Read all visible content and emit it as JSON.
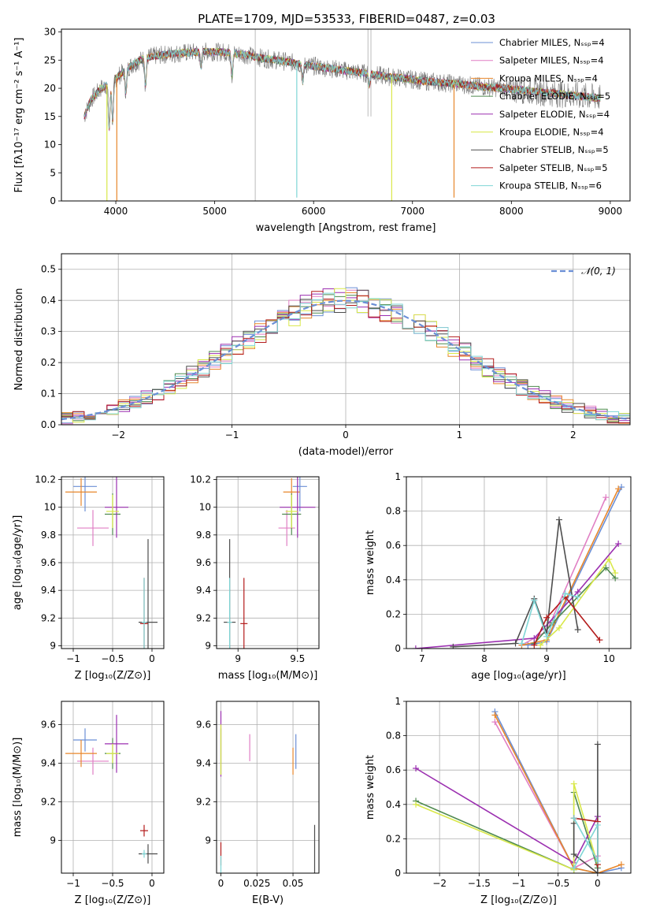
{
  "title": "PLATE=1709, MJD=53533, FIBERID=0487, z=0.03",
  "colors": {
    "chabrier_miles": "#6b8fd6",
    "salpeter_miles": "#e07fc4",
    "kroupa_miles": "#e8872b",
    "chabrier_elodie": "#4f8a4f",
    "salpeter_elodie": "#9b2fb0",
    "kroupa_elodie": "#d9e84a",
    "chabrier_stelib": "#4d4d4d",
    "salpeter_stelib": "#b31b1b",
    "kroupa_stelib": "#7fd6d6",
    "normal_curve": "#6b8fd6",
    "grid": "#b0b0b0"
  },
  "chart_data": [
    {
      "id": "spectrum",
      "type": "line",
      "title": "PLATE=1709, MJD=53533, FIBERID=0487, z=0.03",
      "xlabel": "wavelength [Angstrom, rest frame]",
      "ylabel": "Flux [fλ10⁻¹⁷ erg cm⁻² s⁻¹ A⁻¹]",
      "xlim": [
        3450,
        9200
      ],
      "ylim": [
        0,
        30.5
      ],
      "xticks": [
        4000,
        5000,
        6000,
        7000,
        8000,
        9000
      ],
      "yticks": [
        0,
        5,
        10,
        15,
        20,
        25,
        30
      ],
      "grid": false,
      "legend_position": "top-right",
      "legend": [
        "Chabrier MILES, Nₛₛₚ=4",
        "Salpeter MILES, Nₛₛₚ=4",
        "Kroupa MILES, Nₛₛₚ=4",
        "Chabrier ELODIE, Nₛₛₚ=5",
        "Salpeter ELODIE, Nₛₛₚ=4",
        "Kroupa ELODIE, Nₛₛₚ=4",
        "Chabrier STELIB, Nₛₛₚ=5",
        "Salpeter STELIB, Nₛₛₚ=5",
        "Kroupa STELIB, Nₛₛₚ=6"
      ],
      "continuum": {
        "x": [
          3680,
          3750,
          3850,
          3950,
          4050,
          4150,
          4300,
          4500,
          4700,
          4900,
          5100,
          5300,
          5500,
          5700,
          5900,
          6100,
          6300,
          6500,
          6700,
          6900,
          7100,
          7300,
          7500,
          7700,
          7900,
          8100,
          8300,
          8500,
          8700,
          8900
        ],
        "y": [
          15,
          18,
          20,
          21,
          22.5,
          24,
          25.5,
          26,
          26.3,
          26.5,
          26.4,
          26,
          25.3,
          24.8,
          24.2,
          23.7,
          23.2,
          22.7,
          22.2,
          21.8,
          21.3,
          21,
          20.7,
          20.3,
          20,
          19.7,
          19.3,
          19,
          18.6,
          18.3
        ]
      },
      "absorption_lines": [
        {
          "x": 3933,
          "depth": 8
        },
        {
          "x": 3968,
          "depth": 7
        },
        {
          "x": 4102,
          "depth": 4
        },
        {
          "x": 4300,
          "depth": 5
        },
        {
          "x": 4861,
          "depth": 3
        },
        {
          "x": 5175,
          "depth": 4
        },
        {
          "x": 5890,
          "depth": 3
        },
        {
          "x": 6563,
          "depth": 2
        }
      ],
      "artifacts": [
        {
          "x": 3910,
          "ymin": 0
        },
        {
          "x": 4010,
          "ymin": 0
        },
        {
          "x": 5830,
          "ymin": 0.6
        },
        {
          "x": 6790,
          "ymin": 0
        },
        {
          "x": 7420,
          "ymin": 0.6
        }
      ],
      "sky_spikes": [
        {
          "x": 5410,
          "ymin": 0
        },
        {
          "x": 6550,
          "ymin": 15
        },
        {
          "x": 6580,
          "ymin": 15
        }
      ]
    },
    {
      "id": "residuals",
      "type": "line",
      "xlabel": "(data-model)/error",
      "ylabel": "Normed distribution",
      "xlim": [
        -2.5,
        2.5
      ],
      "ylim": [
        0,
        0.55
      ],
      "xticks": [
        -2,
        -1,
        0,
        1,
        2
      ],
      "yticks": [
        0.0,
        0.1,
        0.2,
        0.3,
        0.4,
        0.5
      ],
      "grid": true,
      "legend_position": "top-right",
      "legend": [
        "𝒩(0, 1)"
      ],
      "bin_width": 0.1
    },
    {
      "id": "age-vs-z",
      "type": "scatter",
      "xlabel": "Z [log₁₀(Z/Z⊙)]",
      "ylabel": "age  [log₁₀(age/yr)]",
      "xlim": [
        -1.15,
        0.15
      ],
      "ylim": [
        8.98,
        10.22
      ],
      "xticks": [
        -1.0,
        -0.5,
        0.0
      ],
      "yticks": [
        9.0,
        9.2,
        9.4,
        9.6,
        9.8,
        10.0,
        10.2
      ],
      "grid": true,
      "points": [
        {
          "x": -0.85,
          "y": 10.15,
          "xerr": 0.15,
          "yerr": 0.18,
          "series": "chabrier_miles"
        },
        {
          "x": -0.75,
          "y": 9.85,
          "xerr": 0.2,
          "yerr": 0.13,
          "series": "salpeter_miles"
        },
        {
          "x": -0.9,
          "y": 10.11,
          "xerr": 0.2,
          "yerr": 0.1,
          "series": "kroupa_miles"
        },
        {
          "x": -0.5,
          "y": 9.95,
          "xerr": 0.1,
          "yerr": 0.15,
          "series": "chabrier_elodie"
        },
        {
          "x": -0.45,
          "y": 10.0,
          "xerr": 0.15,
          "yerr": 0.22,
          "series": "salpeter_elodie"
        },
        {
          "x": -0.5,
          "y": 9.97,
          "xerr": 0.08,
          "yerr": 0.12,
          "series": "kroupa_elodie"
        },
        {
          "x": -0.05,
          "y": 9.17,
          "xerr": 0.12,
          "yerr": 0.6,
          "series": "chabrier_stelib"
        },
        {
          "x": -0.1,
          "y": 9.16,
          "xerr": 0.05,
          "yerr": 0.33,
          "series": "salpeter_stelib"
        },
        {
          "x": -0.1,
          "y": 9.17,
          "xerr": 0.03,
          "yerr": 0.32,
          "series": "kroupa_stelib"
        }
      ]
    },
    {
      "id": "age-vs-mass",
      "type": "scatter",
      "xlabel": "mass [log₁₀(M/M⊙)]",
      "xlim": [
        8.82,
        9.68
      ],
      "ylim": [
        8.98,
        10.22
      ],
      "xticks": [
        9.0,
        9.5
      ],
      "yticks": [
        9.0,
        9.2,
        9.4,
        9.6,
        9.8,
        10.0,
        10.2
      ],
      "grid": true,
      "points": [
        {
          "x": 9.52,
          "y": 10.15,
          "xerr": 0.06,
          "yerr": 0.18,
          "series": "chabrier_miles"
        },
        {
          "x": 9.41,
          "y": 9.85,
          "xerr": 0.07,
          "yerr": 0.13,
          "series": "salpeter_miles"
        },
        {
          "x": 9.45,
          "y": 10.11,
          "xerr": 0.07,
          "yerr": 0.1,
          "series": "kroupa_miles"
        },
        {
          "x": 9.45,
          "y": 9.95,
          "xerr": 0.08,
          "yerr": 0.15,
          "series": "chabrier_elodie"
        },
        {
          "x": 9.5,
          "y": 10.0,
          "xerr": 0.15,
          "yerr": 0.22,
          "series": "salpeter_elodie"
        },
        {
          "x": 9.45,
          "y": 9.97,
          "xerr": 0.05,
          "yerr": 0.12,
          "series": "kroupa_elodie"
        },
        {
          "x": 8.93,
          "y": 9.17,
          "xerr": 0.05,
          "yerr": 0.6,
          "series": "chabrier_stelib"
        },
        {
          "x": 9.05,
          "y": 9.16,
          "xerr": 0.03,
          "yerr": 0.33,
          "series": "salpeter_stelib"
        },
        {
          "x": 8.93,
          "y": 9.17,
          "xerr": 0.02,
          "yerr": 0.32,
          "series": "kroupa_stelib"
        }
      ]
    },
    {
      "id": "mass-weight-vs-age",
      "type": "line",
      "xlabel": "age  [log₁₀(age/yr)]",
      "ylabel": "mass weight",
      "xlim": [
        6.75,
        10.35
      ],
      "ylim": [
        0,
        1.0
      ],
      "xticks": [
        7,
        8,
        9,
        10
      ],
      "yticks": [
        0.0,
        0.2,
        0.4,
        0.6,
        0.8,
        1.0
      ],
      "grid": true,
      "series": [
        {
          "key": "chabrier_miles",
          "x": [
            8.7,
            9.0,
            10.2
          ],
          "y": [
            0.02,
            0.04,
            0.94
          ]
        },
        {
          "key": "salpeter_miles",
          "x": [
            8.6,
            9.0,
            9.95
          ],
          "y": [
            0.02,
            0.1,
            0.88
          ]
        },
        {
          "key": "kroupa_miles",
          "x": [
            8.6,
            9.0,
            10.15
          ],
          "y": [
            0.02,
            0.05,
            0.93
          ]
        },
        {
          "key": "chabrier_elodie",
          "x": [
            8.8,
            9.1,
            9.95,
            10.1
          ],
          "y": [
            0.03,
            0.15,
            0.47,
            0.41
          ]
        },
        {
          "key": "salpeter_elodie",
          "x": [
            6.9,
            8.8,
            9.5,
            10.15
          ],
          "y": [
            0.0,
            0.06,
            0.33,
            0.61
          ]
        },
        {
          "key": "kroupa_elodie",
          "x": [
            8.9,
            9.2,
            10.0,
            10.1
          ],
          "y": [
            0.02,
            0.12,
            0.52,
            0.44
          ]
        },
        {
          "key": "chabrier_stelib",
          "x": [
            7.5,
            8.5,
            8.8,
            9.0,
            9.2,
            9.5
          ],
          "y": [
            0.01,
            0.03,
            0.29,
            0.09,
            0.75,
            0.11
          ]
        },
        {
          "key": "salpeter_stelib",
          "x": [
            8.8,
            9.0,
            9.3,
            9.85
          ],
          "y": [
            0.02,
            0.18,
            0.3,
            0.05
          ]
        },
        {
          "key": "kroupa_stelib",
          "x": [
            8.6,
            8.8,
            9.0,
            9.3,
            9.5
          ],
          "y": [
            0.03,
            0.28,
            0.07,
            0.32,
            0.3
          ]
        }
      ]
    },
    {
      "id": "mass-vs-z",
      "type": "scatter",
      "xlabel": "Z [log₁₀(Z/Z⊙)]",
      "ylabel": "mass [log₁₀(M/M⊙)]",
      "xlim": [
        -1.15,
        0.15
      ],
      "ylim": [
        8.83,
        9.72
      ],
      "xticks": [
        -1.0,
        -0.5,
        0.0
      ],
      "yticks": [
        9.0,
        9.2,
        9.4,
        9.6
      ],
      "grid": true,
      "points": [
        {
          "x": -0.85,
          "y": 9.52,
          "xerr": 0.15,
          "yerr": 0.06,
          "series": "chabrier_miles"
        },
        {
          "x": -0.75,
          "y": 9.41,
          "xerr": 0.2,
          "yerr": 0.07,
          "series": "salpeter_miles"
        },
        {
          "x": -0.9,
          "y": 9.45,
          "xerr": 0.2,
          "yerr": 0.07,
          "series": "kroupa_miles"
        },
        {
          "x": -0.5,
          "y": 9.45,
          "xerr": 0.1,
          "yerr": 0.08,
          "series": "chabrier_elodie"
        },
        {
          "x": -0.45,
          "y": 9.5,
          "xerr": 0.15,
          "yerr": 0.15,
          "series": "salpeter_elodie"
        },
        {
          "x": -0.5,
          "y": 9.45,
          "xerr": 0.08,
          "yerr": 0.05,
          "series": "kroupa_elodie"
        },
        {
          "x": -0.05,
          "y": 8.93,
          "xerr": 0.12,
          "yerr": 0.05,
          "series": "chabrier_stelib"
        },
        {
          "x": -0.1,
          "y": 9.05,
          "xerr": 0.05,
          "yerr": 0.03,
          "series": "salpeter_stelib"
        },
        {
          "x": -0.1,
          "y": 8.93,
          "xerr": 0.03,
          "yerr": 0.02,
          "series": "kroupa_stelib"
        }
      ]
    },
    {
      "id": "mass-vs-ebv",
      "type": "scatter",
      "xlabel": "E(B-V)",
      "xlim": [
        -0.003,
        0.068
      ],
      "ylim": [
        8.83,
        9.72
      ],
      "xticks": [
        0.0,
        0.025,
        0.05
      ],
      "yticks": [
        9.0,
        9.2,
        9.4,
        9.6
      ],
      "grid": true,
      "points": [
        {
          "x": 0.052,
          "y": 9.46,
          "yerr": 0.09,
          "series": "chabrier_miles"
        },
        {
          "x": 0.02,
          "y": 9.48,
          "yerr": 0.07,
          "series": "salpeter_miles"
        },
        {
          "x": 0.05,
          "y": 9.41,
          "yerr": 0.07,
          "series": "kroupa_miles"
        },
        {
          "x": 0.0,
          "y": 9.46,
          "yerr": 0.12,
          "series": "chabrier_elodie"
        },
        {
          "x": 0.0,
          "y": 9.5,
          "yerr": 0.17,
          "series": "salpeter_elodie"
        },
        {
          "x": 0.0,
          "y": 9.47,
          "yerr": 0.13,
          "series": "kroupa_elodie"
        },
        {
          "x": 0.065,
          "y": 8.93,
          "yerr": 0.15,
          "series": "chabrier_stelib"
        },
        {
          "x": 0.0,
          "y": 8.93,
          "yerr": 0.06,
          "series": "salpeter_stelib"
        },
        {
          "x": 0.0,
          "y": 8.87,
          "yerr": 0.05,
          "series": "kroupa_stelib"
        }
      ]
    },
    {
      "id": "mass-weight-vs-z",
      "type": "line",
      "xlabel": "Z [log₁₀(Z/Z⊙)]",
      "ylabel": "mass weight",
      "xlim": [
        -2.42,
        0.42
      ],
      "ylim": [
        0,
        1.0
      ],
      "xticks": [
        -2.0,
        -1.5,
        -1.0,
        -0.5,
        0.0
      ],
      "yticks": [
        0.0,
        0.2,
        0.4,
        0.6,
        0.8,
        1.0
      ],
      "grid": true,
      "series": [
        {
          "key": "chabrier_miles",
          "x": [
            -1.3,
            -0.3,
            0.0,
            0.3
          ],
          "y": [
            0.94,
            0.03,
            0.0,
            0.03
          ]
        },
        {
          "key": "salpeter_miles",
          "x": [
            -1.3,
            -0.3,
            0.0
          ],
          "y": [
            0.88,
            0.03,
            0.1
          ]
        },
        {
          "key": "kroupa_miles",
          "x": [
            -1.3,
            -0.3,
            0.0,
            0.3
          ],
          "y": [
            0.92,
            0.03,
            0.0,
            0.05
          ]
        },
        {
          "key": "chabrier_elodie",
          "x": [
            -2.3,
            -0.3,
            -0.3,
            0.0
          ],
          "y": [
            0.42,
            0.02,
            0.47,
            0.03
          ]
        },
        {
          "key": "salpeter_elodie",
          "x": [
            -2.3,
            -0.3,
            0.0
          ],
          "y": [
            0.61,
            0.06,
            0.33
          ]
        },
        {
          "key": "kroupa_elodie",
          "x": [
            -2.3,
            -0.3,
            -0.3,
            0.0
          ],
          "y": [
            0.4,
            0.02,
            0.52,
            0.05
          ]
        },
        {
          "key": "chabrier_stelib",
          "x": [
            -0.3,
            -0.3,
            0.0,
            0.0
          ],
          "y": [
            0.29,
            0.11,
            0.0,
            0.75
          ]
        },
        {
          "key": "salpeter_stelib",
          "x": [
            -0.3,
            0.0,
            0.0
          ],
          "y": [
            0.32,
            0.3,
            0.05
          ]
        },
        {
          "key": "kroupa_stelib",
          "x": [
            -0.3,
            0.0,
            0.0,
            -0.3
          ],
          "y": [
            0.03,
            0.28,
            0.07,
            0.32
          ]
        }
      ]
    }
  ]
}
